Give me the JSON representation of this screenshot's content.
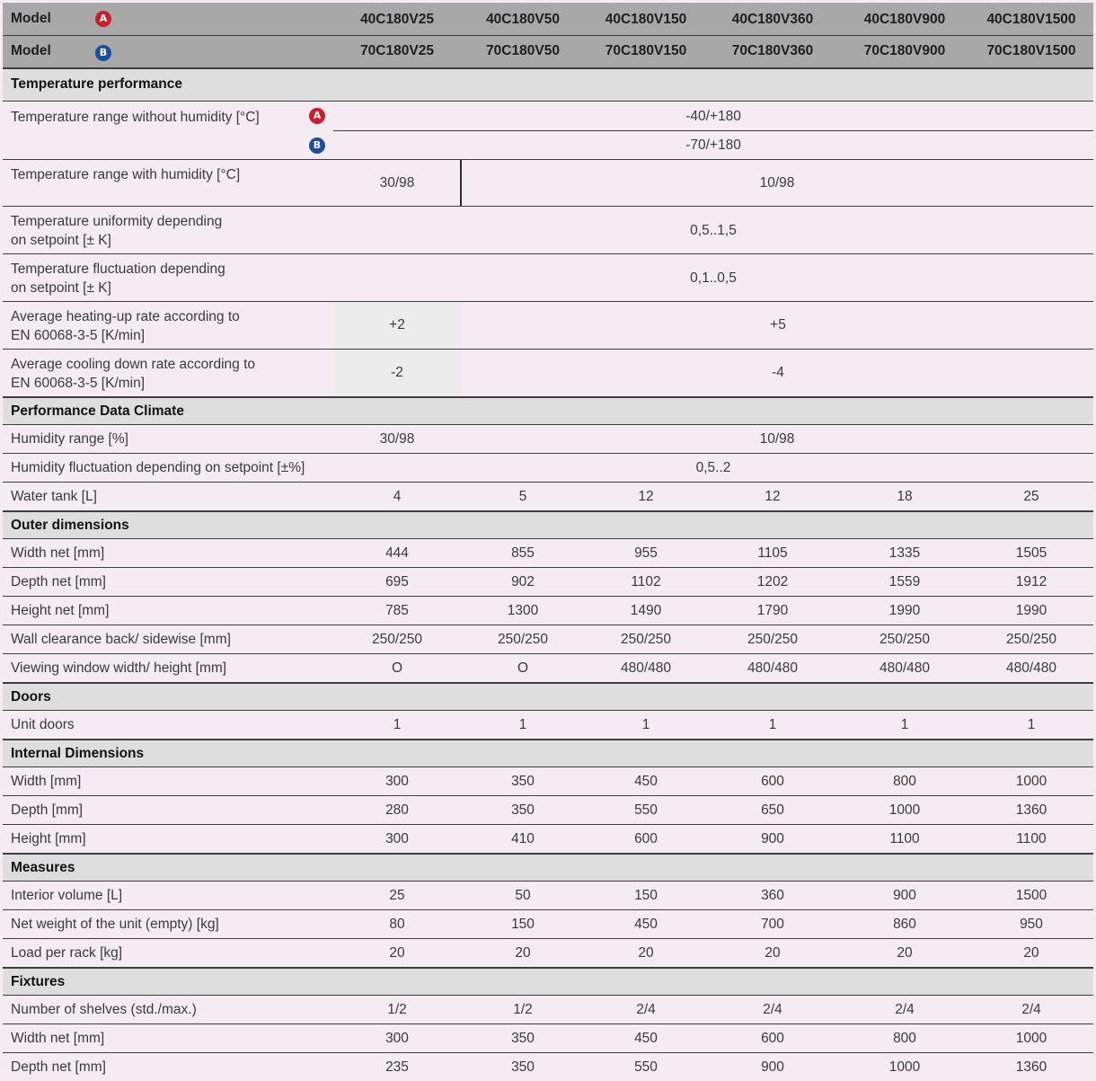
{
  "header": {
    "rows": [
      {
        "label": "Model",
        "badge": "A",
        "values": [
          "40C180V25",
          "40C180V50",
          "40C180V150",
          "40C180V360",
          "40C180V900",
          "40C180V1500"
        ]
      },
      {
        "label": "Model",
        "badge": "B",
        "values": [
          "70C180V25",
          "70C180V50",
          "70C180V150",
          "70C180V360",
          "70C180V900",
          "70C180V1500"
        ]
      }
    ]
  },
  "badge_colors": {
    "A": "#c6202e",
    "B": "#1d4f9a"
  },
  "temperature": {
    "title": "Temperature performance",
    "range_no_humidity": {
      "label": "Temperature range without humidity [°C]",
      "badge_a": "A",
      "value_a": "-40/+180",
      "badge_b": "B",
      "value_b": "-70/+180"
    },
    "range_humidity": {
      "label": "Temperature range with humidity [°C]",
      "v1": "30/98",
      "v2": "10/98"
    },
    "uniformity": {
      "line1": "Temperature uniformity depending",
      "line2": "on setpoint [± K]",
      "value": "0,5..1,5"
    },
    "fluctuation": {
      "line1": "Temperature fluctuation depending",
      "line2": "on setpoint [± K]",
      "value": "0,1..0,5"
    },
    "heating": {
      "line1": "Average heating-up rate according to",
      "line2": "EN 60068-3-5 [K/min]",
      "v1": "+2",
      "v2": "+5"
    },
    "cooling": {
      "line1": "Average cooling down rate according to",
      "line2": "EN 60068-3-5 [K/min]",
      "v1": "-2",
      "v2": "-4"
    }
  },
  "climate": {
    "title": "Performance Data Climate",
    "humidity_range": {
      "label": "Humidity range [%]",
      "v1": "30/98",
      "v2": "10/98"
    },
    "humidity_fluct": {
      "label": "Humidity fluctuation depending on setpoint [±%]",
      "value": "0,5..2"
    },
    "water_tank": {
      "label": "Water tank [L]",
      "values": [
        "4",
        "5",
        "12",
        "12",
        "18",
        "25"
      ]
    }
  },
  "sections": [
    {
      "title": "Outer dimensions",
      "rows": [
        {
          "label": "Width net [mm]",
          "values": [
            "444",
            "855",
            "955",
            "1105",
            "1335",
            "1505"
          ]
        },
        {
          "label": "Depth net [mm]",
          "values": [
            "695",
            "902",
            "1102",
            "1202",
            "1559",
            "1912"
          ]
        },
        {
          "label": "Height net [mm]",
          "values": [
            "785",
            "1300",
            "1490",
            "1790",
            "1990",
            "1990"
          ]
        },
        {
          "label": "Wall clearance back/ sidewise [mm]",
          "values": [
            "250/250",
            "250/250",
            "250/250",
            "250/250",
            "250/250",
            "250/250"
          ]
        },
        {
          "label": "Viewing window width/ height [mm]",
          "values": [
            "O",
            "O",
            "480/480",
            "480/480",
            "480/480",
            "480/480"
          ]
        }
      ]
    },
    {
      "title": "Doors",
      "rows": [
        {
          "label": "Unit doors",
          "values": [
            "1",
            "1",
            "1",
            "1",
            "1",
            "1"
          ]
        }
      ]
    },
    {
      "title": "Internal Dimensions",
      "rows": [
        {
          "label": "Width [mm]",
          "values": [
            "300",
            "350",
            "450",
            "600",
            "800",
            "1000"
          ]
        },
        {
          "label": "Depth [mm]",
          "values": [
            "280",
            "350",
            "550",
            "650",
            "1000",
            "1360"
          ]
        },
        {
          "label": "Height [mm]",
          "values": [
            "300",
            "410",
            "600",
            "900",
            "1100",
            "1100"
          ]
        }
      ]
    },
    {
      "title": "Measures",
      "rows": [
        {
          "label": "Interior volume [L]",
          "values": [
            "25",
            "50",
            "150",
            "360",
            "900",
            "1500"
          ]
        },
        {
          "label": "Net weight of the unit (empty) [kg]",
          "values": [
            "80",
            "150",
            "450",
            "700",
            "860",
            "950"
          ]
        },
        {
          "label": "Load per rack [kg]",
          "values": [
            "20",
            "20",
            "20",
            "20",
            "20",
            "20"
          ]
        }
      ]
    },
    {
      "title": "Fixtures",
      "rows": [
        {
          "label": "Number of shelves (std./max.)",
          "values": [
            "1/2",
            "1/2",
            "2/4",
            "2/4",
            "2/4",
            "2/4"
          ]
        },
        {
          "label": "Width net [mm]",
          "values": [
            "300",
            "350",
            "450",
            "600",
            "800",
            "1000"
          ]
        },
        {
          "label": "Depth net [mm]",
          "values": [
            "235",
            "350",
            "550",
            "900",
            "1000",
            "1360"
          ]
        }
      ]
    }
  ]
}
